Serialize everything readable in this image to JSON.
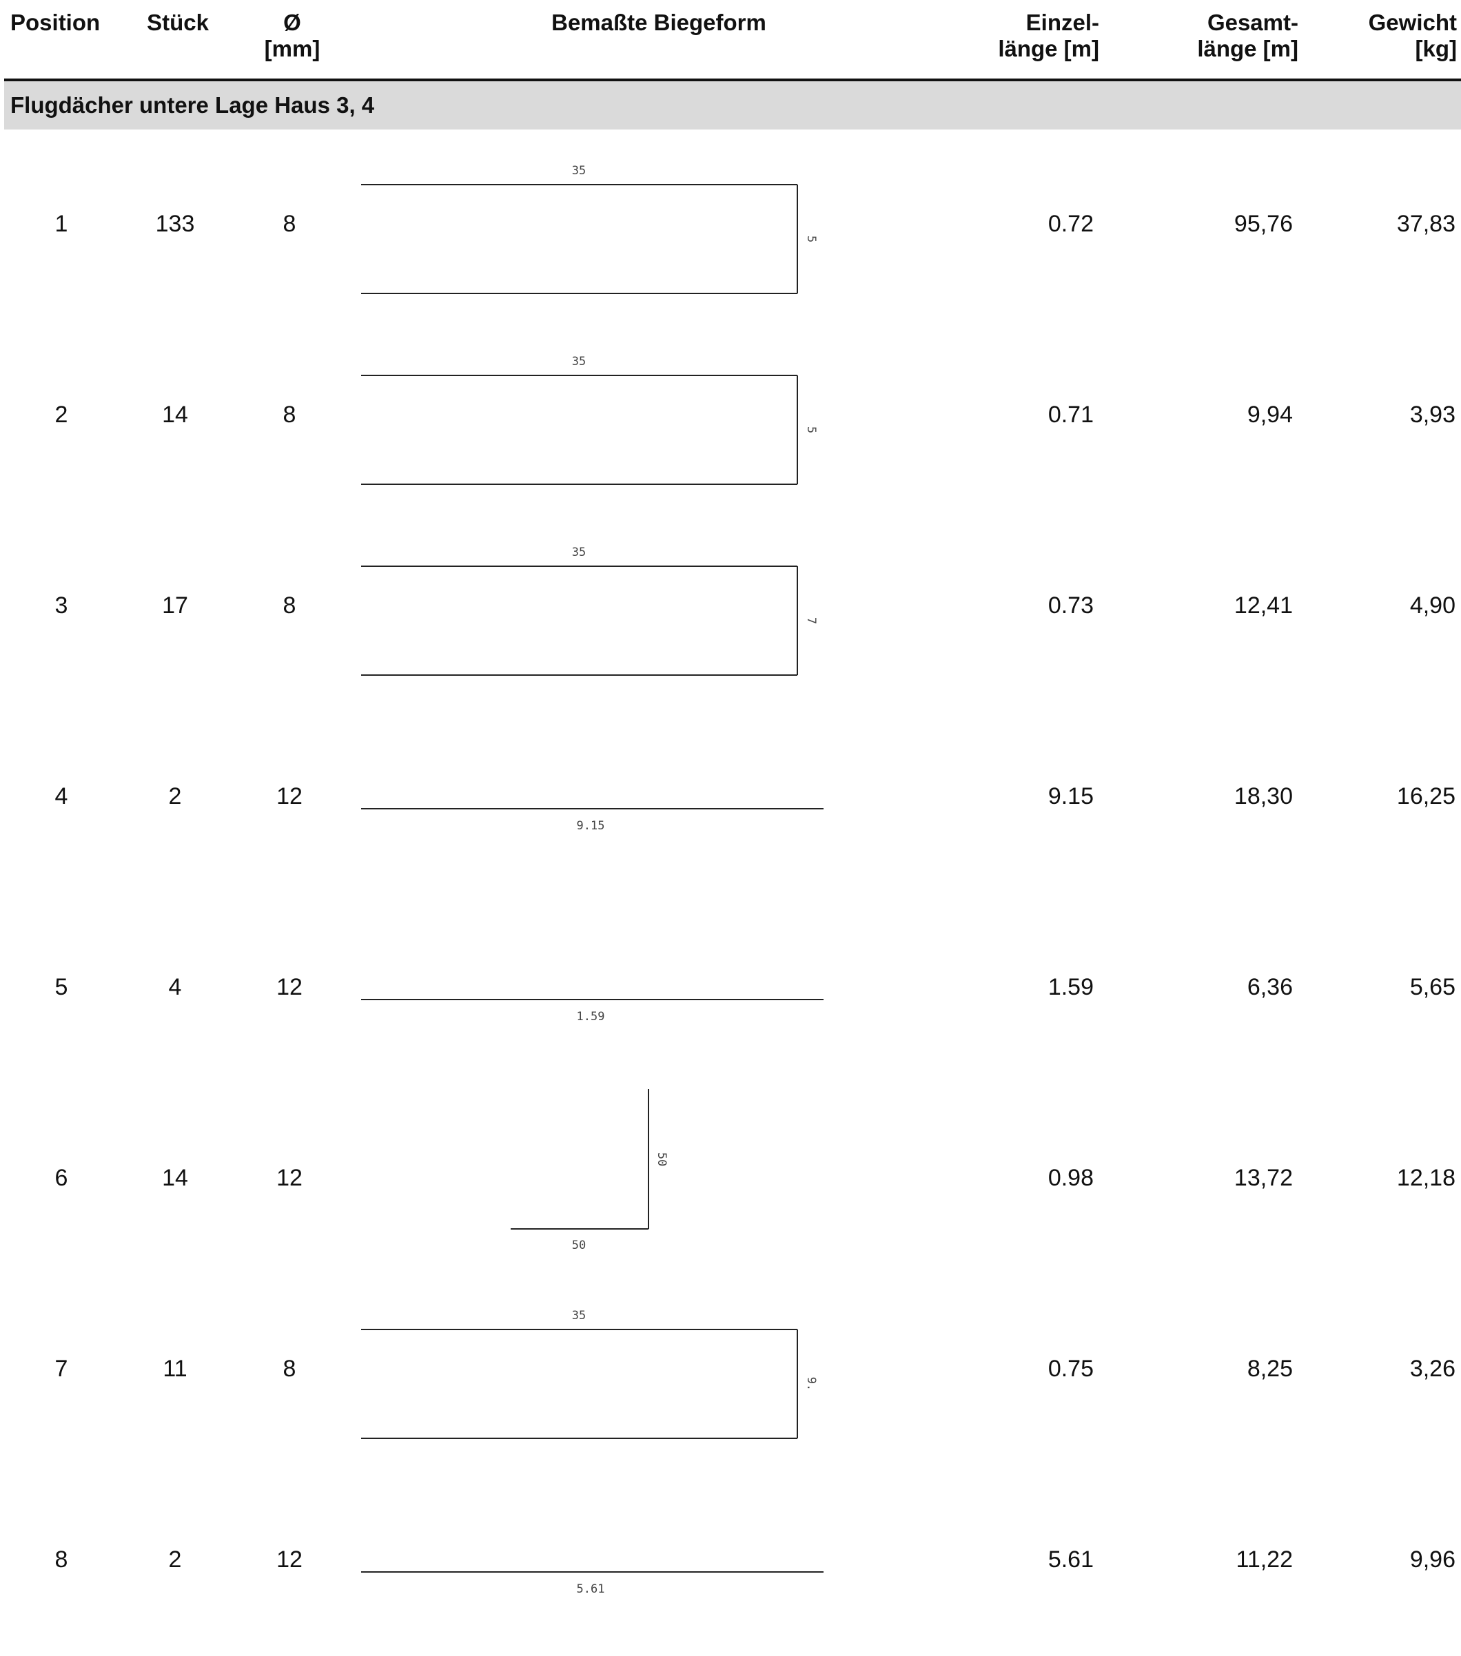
{
  "header": {
    "position": "Position",
    "stueck": "Stück",
    "durchmesser": "Ø\n[mm]",
    "biegeform": "Bemaßte Biegeform",
    "einzellaenge": "Einzel-\nlänge [m]",
    "gesamtlaenge": "Gesamt-\nlänge [m]",
    "gewicht": "Gewicht\n[kg]"
  },
  "section": {
    "title": "Flugdächer untere Lage Haus 3, 4"
  },
  "rows": [
    {
      "position": "1",
      "stueck": "133",
      "durchmesser": "8",
      "einzellaenge": "0.72",
      "gesamtlaenge": "95,76",
      "gewicht": "37,83",
      "shape": {
        "type": "u-open-left",
        "dims": [
          "35",
          "5"
        ]
      }
    },
    {
      "position": "2",
      "stueck": "14",
      "durchmesser": "8",
      "einzellaenge": "0.71",
      "gesamtlaenge": "9,94",
      "gewicht": "3,93",
      "shape": {
        "type": "u-open-left",
        "dims": [
          "35",
          "5"
        ]
      }
    },
    {
      "position": "3",
      "stueck": "17",
      "durchmesser": "8",
      "einzellaenge": "0.73",
      "gesamtlaenge": "12,41",
      "gewicht": "4,90",
      "shape": {
        "type": "u-open-left",
        "dims": [
          "35",
          "7"
        ]
      }
    },
    {
      "position": "4",
      "stueck": "2",
      "durchmesser": "12",
      "einzellaenge": "9.15",
      "gesamtlaenge": "18,30",
      "gewicht": "16,25",
      "shape": {
        "type": "straight",
        "dims": [
          "9.15"
        ]
      }
    },
    {
      "position": "5",
      "stueck": "4",
      "durchmesser": "12",
      "einzellaenge": "1.59",
      "gesamtlaenge": "6,36",
      "gewicht": "5,65",
      "shape": {
        "type": "straight",
        "dims": [
          "1.59"
        ]
      }
    },
    {
      "position": "6",
      "stueck": "14",
      "durchmesser": "12",
      "einzellaenge": "0.98",
      "gesamtlaenge": "13,72",
      "gewicht": "12,18",
      "shape": {
        "type": "l-bend",
        "dims": [
          "50",
          "50"
        ]
      }
    },
    {
      "position": "7",
      "stueck": "11",
      "durchmesser": "8",
      "einzellaenge": "0.75",
      "gesamtlaenge": "8,25",
      "gewicht": "3,26",
      "shape": {
        "type": "u-open-left",
        "dims": [
          "35",
          "9."
        ]
      }
    },
    {
      "position": "8",
      "stueck": "2",
      "durchmesser": "12",
      "einzellaenge": "5.61",
      "gesamtlaenge": "11,22",
      "gewicht": "9,96",
      "shape": {
        "type": "straight",
        "dims": [
          "5.61"
        ]
      }
    }
  ]
}
